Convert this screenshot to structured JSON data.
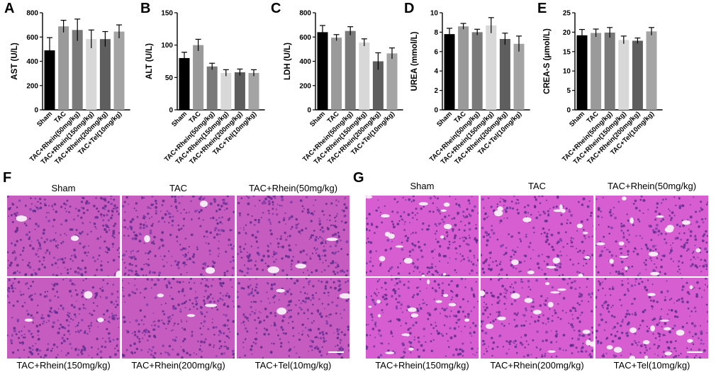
{
  "chart_data": [
    {
      "type": "bar",
      "panel": "A",
      "ylabel": "AST (U/L)",
      "ylim": [
        0,
        800
      ],
      "yticks": [
        0,
        200,
        400,
        600,
        800
      ],
      "categories": [
        "Sham",
        "TAC",
        "TAC+Rhein(50mg/kg)",
        "TAC+Rhein(150mg/kg)",
        "TAC+Rhein(200mg/kg)",
        "TAC+Tel(10mg/kg)"
      ],
      "values": [
        490,
        688,
        658,
        583,
        583,
        645
      ],
      "errors": [
        105,
        50,
        90,
        75,
        62,
        55
      ],
      "colors": [
        "#000000",
        "#9a9a9a",
        "#7a7a7a",
        "#d8d8d8",
        "#5e5e5e",
        "#a4a4a4"
      ]
    },
    {
      "type": "bar",
      "panel": "B",
      "ylabel": "ALT (U/L)",
      "ylim": [
        0,
        150
      ],
      "yticks": [
        0,
        50,
        100,
        150
      ],
      "categories": [
        "Sham",
        "TAC",
        "TAC+Rhein(50mg/kg)",
        "TAC+Rhein(150mg/kg)",
        "TAC+Rhein(200mg/kg)",
        "TAC+Tel(10mg/kg)"
      ],
      "values": [
        80,
        100,
        67,
        57,
        58,
        57
      ],
      "errors": [
        9,
        9,
        5,
        5,
        5,
        5
      ],
      "colors": [
        "#000000",
        "#9a9a9a",
        "#7a7a7a",
        "#d8d8d8",
        "#5e5e5e",
        "#a4a4a4"
      ]
    },
    {
      "type": "bar",
      "panel": "C",
      "ylabel": "LDH (U/L)",
      "ylim": [
        0,
        800
      ],
      "yticks": [
        0,
        200,
        400,
        600,
        800
      ],
      "categories": [
        "Sham",
        "TAC",
        "TAC+Rhein(50mg/kg)",
        "TAC+Rhein(150mg/kg)",
        "TAC+Rhein(200mg/kg)",
        "TAC+Tel(10mg/kg)"
      ],
      "values": [
        640,
        595,
        650,
        555,
        400,
        465
      ],
      "errors": [
        55,
        25,
        35,
        30,
        70,
        45
      ],
      "colors": [
        "#000000",
        "#9a9a9a",
        "#7a7a7a",
        "#d8d8d8",
        "#5e5e5e",
        "#a4a4a4"
      ]
    },
    {
      "type": "bar",
      "panel": "D",
      "ylabel": "UREA (mmol/L)",
      "ylim": [
        0,
        10
      ],
      "yticks": [
        0,
        2,
        4,
        6,
        8,
        10
      ],
      "categories": [
        "Sham",
        "TAC",
        "TAC+Rhein(50mg/kg)",
        "TAC+Rhein(150mg/kg)",
        "TAC+Rhein(200mg/kg)",
        "TAC+Tel(10mg/kg)"
      ],
      "values": [
        7.8,
        8.6,
        8.0,
        8.7,
        7.3,
        6.8
      ],
      "errors": [
        0.6,
        0.3,
        0.3,
        0.8,
        0.6,
        0.8
      ],
      "colors": [
        "#000000",
        "#9a9a9a",
        "#7a7a7a",
        "#d8d8d8",
        "#5e5e5e",
        "#a4a4a4"
      ]
    },
    {
      "type": "bar",
      "panel": "E",
      "ylabel": "CREA-S (μmol/L)",
      "ylim": [
        0,
        25
      ],
      "yticks": [
        0,
        5,
        10,
        15,
        20,
        25
      ],
      "categories": [
        "Sham",
        "TAC",
        "TAC+Rhein(50mg/kg)",
        "TAC+Rhein(150mg/kg)",
        "TAC+Rhein(200mg/kg)",
        "TAC+Tel(10mg/kg)"
      ],
      "values": [
        19.2,
        19.8,
        19.9,
        18.0,
        17.8,
        20.2
      ],
      "errors": [
        1.5,
        1.0,
        1.3,
        1.0,
        0.7,
        1.0
      ],
      "colors": [
        "#000000",
        "#9a9a9a",
        "#7a7a7a",
        "#d8d8d8",
        "#5e5e5e",
        "#a4a4a4"
      ]
    }
  ],
  "micrographs": [
    {
      "panel": "F",
      "tissue_color": "#c65cc0",
      "top_labels": [
        "Sham",
        "TAC",
        "TAC+Rhein(50mg/kg)"
      ],
      "bottom_labels": [
        "TAC+Rhein(150mg/kg)",
        "TAC+Rhein(200mg/kg)",
        "TAC+Tel(10mg/kg)"
      ]
    },
    {
      "panel": "G",
      "tissue_color": "#d65ed0",
      "top_labels": [
        "Sham",
        "TAC",
        "TAC+Rhein(50mg/kg)"
      ],
      "bottom_labels": [
        "TAC+Rhein(150mg/kg)",
        "TAC+Rhein(200mg/kg)",
        "TAC+Tel(10mg/kg)"
      ]
    }
  ]
}
